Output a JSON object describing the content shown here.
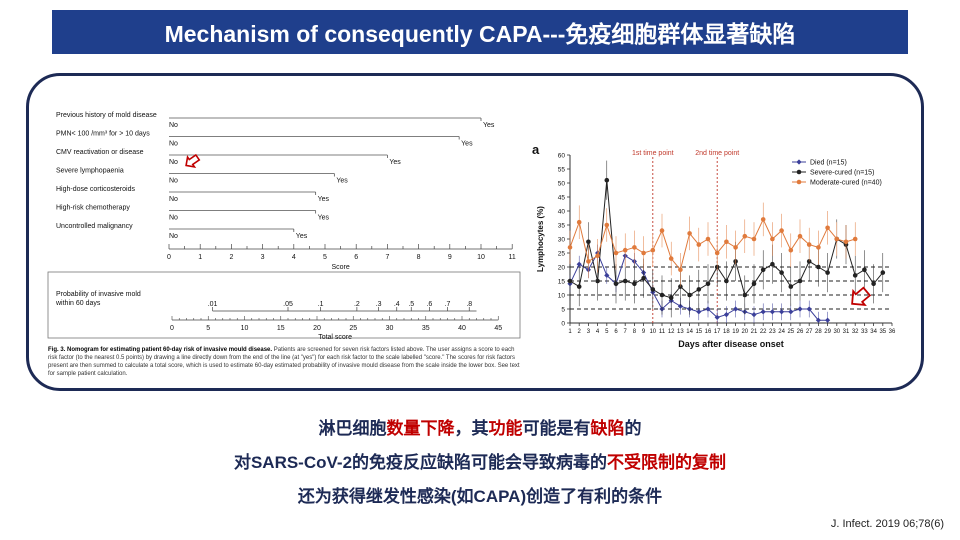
{
  "slide": {
    "title": "Mechanism of consequently CAPA---免疫细胞群体显著缺陷",
    "citation": "J. Infect. 2019 06;78(6)"
  },
  "nomogram": {
    "rows": [
      {
        "label": "Previous history of mold disease",
        "no": "No",
        "yes": "Yes",
        "points": 10
      },
      {
        "label": "PMN< 100 /mm³ for > 10 days",
        "no": "No",
        "yes": "Yes",
        "points": 9.3
      },
      {
        "label": "CMV reactivation or disease",
        "no": "No",
        "yes": "Yes",
        "points": 7
      },
      {
        "label": "Severe lymphopaenia",
        "no": "No",
        "yes": "Yes",
        "points": 5.3
      },
      {
        "label": "High-dose corticosteroids",
        "no": "No",
        "yes": "Yes",
        "points": 4.7
      },
      {
        "label": "High-risk chemotherapy",
        "no": "No",
        "yes": "Yes",
        "points": 4.7
      },
      {
        "label": "Uncontrolled malignancy",
        "no": "No",
        "yes": "Yes",
        "points": 4
      }
    ],
    "score_axis": {
      "label": "Score",
      "ticks": [
        "0",
        "1",
        "2",
        "3",
        "4",
        "5",
        "6",
        "7",
        "8",
        "9",
        "10",
        "11"
      ]
    },
    "probability_label_line1": "Probability of invasive mold",
    "probability_label_line2": "within 60 days",
    "probability_ticks": [
      {
        "label": ".01",
        "total": 5.6
      },
      {
        "label": ".05",
        "total": 16
      },
      {
        "label": ".1",
        "total": 20.5
      },
      {
        "label": ".2",
        "total": 25.5
      },
      {
        "label": ".3",
        "total": 28.5
      },
      {
        "label": ".4",
        "total": 31
      },
      {
        "label": ".5",
        "total": 33
      },
      {
        "label": ".6",
        "total": 35.5
      },
      {
        "label": ".7",
        "total": 38
      },
      {
        "label": ".8",
        "total": 41
      }
    ],
    "total_axis": {
      "label": "Total score",
      "ticks": [
        "0",
        "5",
        "10",
        "15",
        "20",
        "25",
        "30",
        "35",
        "40",
        "45"
      ]
    },
    "caption_bold": "Fig. 3. Nomogram for estimating patient 60-day risk of invasive mould disease.",
    "caption_text": " Patients are screened for seven risk factors listed above. The user assigns a score to each risk factor (to the nearest 0.5 points) by drawing a line directly down from the end of the line (at \"yes\") for each risk factor to the scale labelled \"score.\" The scores for risk factors present are then summed to calculate a total score, which is used to estimate 60-day estimated probability of invasive mould disease from the scale inside the lower box. See text for sample patient calculation."
  },
  "chart_data": {
    "type": "line",
    "panel_label": "a",
    "xlabel": "Days after disease onset",
    "ylabel": "Lymphocytes (%)",
    "xlim": [
      1,
      36
    ],
    "ylim": [
      0,
      60
    ],
    "x_ticks": [
      1,
      2,
      3,
      4,
      5,
      6,
      7,
      8,
      9,
      10,
      11,
      12,
      13,
      14,
      15,
      16,
      17,
      18,
      19,
      20,
      21,
      22,
      23,
      24,
      25,
      26,
      27,
      28,
      29,
      30,
      31,
      32,
      33,
      34,
      35,
      36
    ],
    "y_ticks": [
      0,
      5,
      10,
      15,
      20,
      25,
      30,
      35,
      40,
      45,
      50,
      55,
      60
    ],
    "reference_lines_y": [
      5,
      10,
      15,
      20
    ],
    "annotations": [
      {
        "text": "1st time point",
        "x": 10
      },
      {
        "text": "2nd time point",
        "x": 17
      }
    ],
    "legend_position": "top-right",
    "series": [
      {
        "name": "Died (n=15)",
        "color": "#3b3f9a",
        "x": [
          1,
          2,
          3,
          4,
          5,
          6,
          7,
          8,
          9,
          10,
          11,
          12,
          13,
          14,
          15,
          16,
          17,
          18,
          19,
          20,
          21,
          22,
          23,
          24,
          25,
          26,
          27,
          28,
          29
        ],
        "y": [
          14,
          21,
          19,
          25,
          17,
          14,
          24,
          22,
          18,
          11,
          5,
          8,
          6,
          5,
          4,
          5,
          2,
          3,
          5,
          4,
          3,
          4,
          4,
          4,
          4,
          5,
          5,
          1,
          1
        ]
      },
      {
        "name": "Severe-cured (n=15)",
        "color": "#222222",
        "x": [
          1,
          2,
          3,
          4,
          5,
          6,
          7,
          8,
          9,
          10,
          11,
          12,
          13,
          14,
          15,
          16,
          17,
          18,
          19,
          20,
          21,
          22,
          23,
          24,
          25,
          26,
          27,
          28,
          29,
          30,
          31,
          32,
          33,
          34,
          35
        ],
        "y": [
          15,
          13,
          29,
          15,
          51,
          14,
          15,
          14,
          16,
          12,
          10,
          9,
          13,
          10,
          12,
          14,
          20,
          15,
          22,
          10,
          14,
          19,
          21,
          18,
          13,
          15,
          22,
          20,
          18,
          30,
          28,
          17,
          19,
          14,
          18
        ]
      },
      {
        "name": "Moderate-cured (n=40)",
        "color": "#e07a3c",
        "x": [
          1,
          2,
          3,
          4,
          5,
          6,
          7,
          8,
          9,
          10,
          11,
          12,
          13,
          14,
          15,
          16,
          17,
          18,
          19,
          20,
          21,
          22,
          23,
          24,
          25,
          26,
          27,
          28,
          29,
          30,
          31,
          32
        ],
        "y": [
          27,
          36,
          22,
          24,
          35,
          25,
          26,
          27,
          25,
          26,
          33,
          23,
          19,
          32,
          28,
          30,
          25,
          29,
          27,
          31,
          30,
          37,
          30,
          33,
          26,
          31,
          28,
          27,
          34,
          30,
          29,
          30
        ]
      }
    ]
  },
  "points": {
    "line1_parts": [
      {
        "text": "淋巴细胞",
        "hl": false
      },
      {
        "text": "数量下降",
        "hl": true
      },
      {
        "text": "，其",
        "hl": false
      },
      {
        "text": "功能",
        "hl": true
      },
      {
        "text": "可能是有",
        "hl": false
      },
      {
        "text": "缺陷",
        "hl": true
      },
      {
        "text": "的",
        "hl": false
      }
    ],
    "line2_parts": [
      {
        "text": "对SARS-CoV-2的免疫反应缺陷可能会导致病毒的",
        "hl": false
      },
      {
        "text": "不受限制的复制",
        "hl": true
      }
    ],
    "line3_parts": [
      {
        "text": "还为获得继发性感染(如CAPA)创造了有利的条件",
        "hl": false
      }
    ]
  },
  "colors": {
    "banner": "#1f3f8c",
    "frame": "#1d2a55",
    "highlight": "#c00000",
    "marker_arrow": "#c00000"
  }
}
